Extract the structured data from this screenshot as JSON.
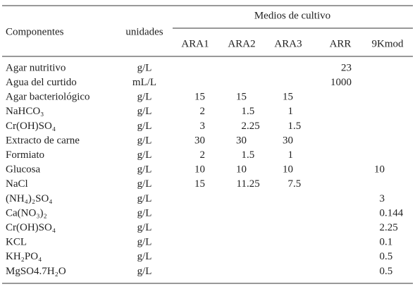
{
  "header": {
    "components": "Componentes",
    "units": "unidades",
    "group": "Medios de cultivo",
    "media": [
      "ARA1",
      "ARA2",
      "ARA3",
      "ARR",
      "9Kmod"
    ]
  },
  "table": {
    "rows": [
      [
        "Agar nutritivo",
        "g/L",
        null,
        null,
        null,
        "23",
        null
      ],
      [
        "Agua del curtido",
        "mL/L",
        null,
        null,
        null,
        "1000",
        null
      ],
      [
        "Agar bacteriológico",
        "g/L",
        "15",
        "15",
        "15",
        null,
        null
      ],
      [
        "NaHCO₃",
        "g/L",
        "2",
        "1.5",
        "1",
        null,
        null
      ],
      [
        "Cr(OH)SO₄",
        "g/L",
        "3",
        "2.25",
        "1.5",
        null,
        null
      ],
      [
        "Extracto de carne",
        "g/L",
        "30",
        "30",
        "30",
        null,
        null
      ],
      [
        "Formiato",
        "g/L",
        "2",
        "1.5",
        "1",
        null,
        null
      ],
      [
        "Glucosa",
        "g/L",
        "10",
        "10",
        "10",
        null,
        "10"
      ],
      [
        "NaCl",
        "g/L",
        "15",
        "11.25",
        "7.5",
        null,
        null
      ],
      [
        "(NH₄)₂SO₄",
        "g/L",
        null,
        null,
        null,
        null,
        "3"
      ],
      [
        "Ca(NO₃)₂",
        "g/L",
        null,
        null,
        null,
        null,
        "0.144"
      ],
      [
        "Cr(OH)SO₄",
        "g/L",
        null,
        null,
        null,
        null,
        "2.25"
      ],
      [
        "KCL",
        "g/L",
        null,
        null,
        null,
        null,
        "0.1"
      ],
      [
        "KH₂PO₄",
        "g/L",
        null,
        null,
        null,
        null,
        "0.5"
      ],
      [
        "MgSO4.7H₂O",
        "g/L",
        null,
        null,
        null,
        null,
        "0.5"
      ]
    ]
  }
}
